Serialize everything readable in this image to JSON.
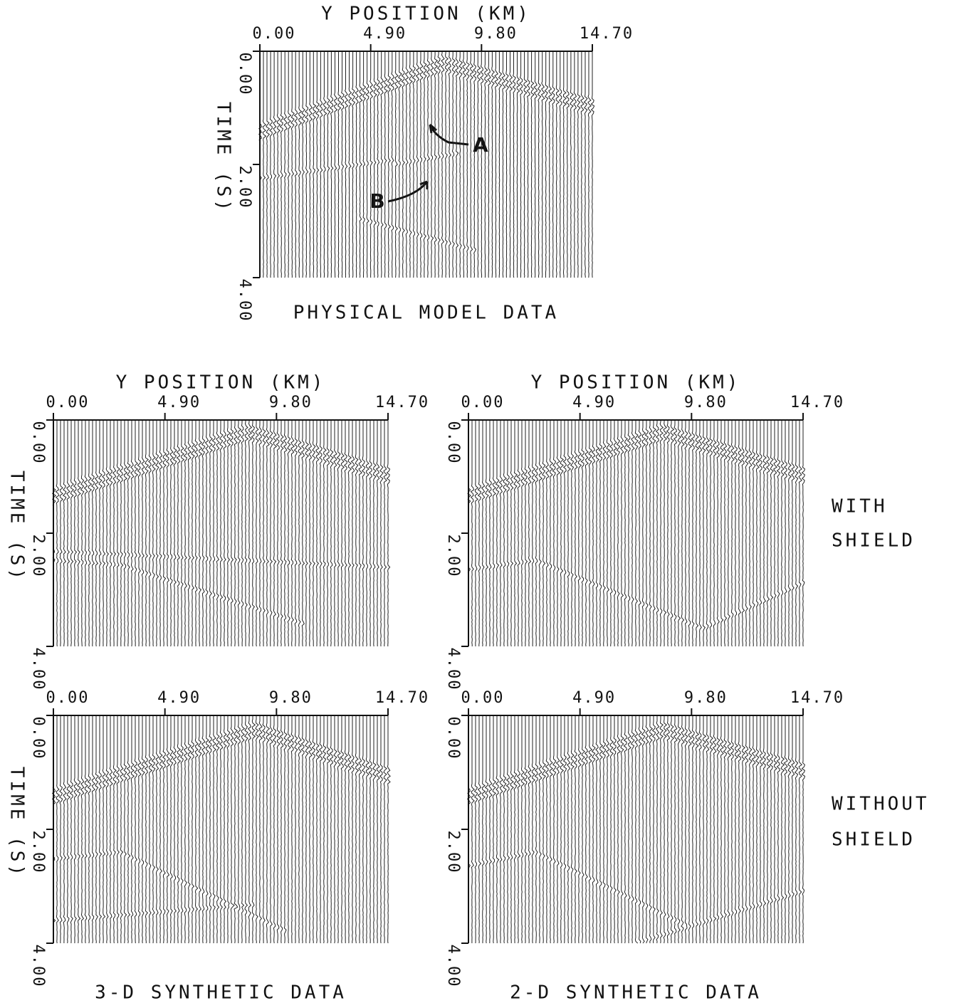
{
  "figure": {
    "panels": [
      {
        "x_axis_label": "Y POSITION (KM)",
        "x_ticks": [
          "0.00",
          "4.90",
          "9.80",
          "14.70"
        ],
        "y_axis_label": "TIME (S)",
        "y_ticks": [
          "0.00",
          "2.00",
          "4.00"
        ],
        "annotations": [
          "A",
          "B"
        ],
        "caption": "PHYSICAL MODEL DATA"
      },
      {
        "x_axis_label": "Y POSITION (KM)",
        "x_ticks": [
          "0.00",
          "4.90",
          "9.80",
          "14.70"
        ],
        "y_axis_label": "TIME (S)",
        "y_ticks": [
          "0.00",
          "2.00",
          "4.00"
        ]
      },
      {
        "x_axis_label": "Y POSITION (KM)",
        "x_ticks": [
          "0.00",
          "4.90",
          "9.80",
          "14.70"
        ],
        "y_ticks": [
          "0.00",
          "2.00",
          "4.00"
        ]
      },
      {
        "x_ticks": [
          "0.00",
          "4.90",
          "9.80",
          "14.70"
        ],
        "y_axis_label": "TIME (S)",
        "y_ticks": [
          "0.00",
          "2.00",
          "4.00"
        ],
        "caption": "3-D SYNTHETIC DATA"
      },
      {
        "x_ticks": [
          "0.00",
          "4.90",
          "9.80",
          "14.70"
        ],
        "y_ticks": [
          "0.00",
          "2.00",
          "4.00"
        ],
        "caption": "2-D SYNTHETIC DATA"
      }
    ],
    "row_labels": [
      [
        "WITH",
        "SHIELD"
      ],
      [
        "WITHOUT",
        "SHIELD"
      ]
    ]
  }
}
